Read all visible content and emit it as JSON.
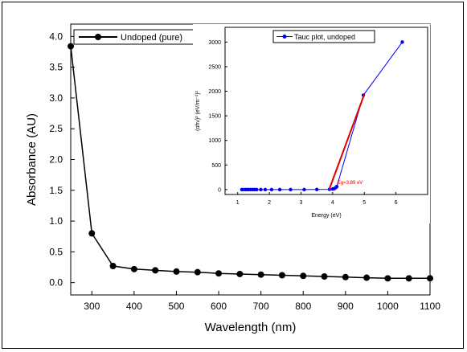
{
  "chart_data": [
    {
      "type": "line",
      "xlabel": "Wavelength (nm)",
      "ylabel": "Absorbance (AU)",
      "xlim": [
        250,
        1100
      ],
      "ylim": [
        -0.2,
        4.2
      ],
      "xticks": [
        300,
        400,
        500,
        600,
        700,
        800,
        900,
        1000,
        1100
      ],
      "yticks": [
        0.0,
        0.5,
        1.0,
        1.5,
        2.0,
        2.5,
        3.0,
        3.5,
        4.0
      ],
      "xtick_labels": [
        "300",
        "400",
        "500",
        "600",
        "700",
        "800",
        "900",
        "1000",
        "1100"
      ],
      "ytick_labels": [
        "0.0",
        "0.5",
        "1.0",
        "1.5",
        "2.0",
        "2.5",
        "3.0",
        "3.5",
        "4.0"
      ],
      "legend_position": "top-left",
      "series": [
        {
          "name": "Undoped (pure)",
          "color": "#000000",
          "marker": "circle",
          "x": [
            250,
            300,
            350,
            400,
            450,
            500,
            550,
            600,
            650,
            700,
            750,
            800,
            850,
            900,
            950,
            1000,
            1050,
            1100
          ],
          "y": [
            3.84,
            0.8,
            0.27,
            0.22,
            0.2,
            0.18,
            0.17,
            0.15,
            0.14,
            0.13,
            0.12,
            0.11,
            0.1,
            0.09,
            0.08,
            0.07,
            0.07,
            0.07
          ]
        }
      ]
    },
    {
      "type": "line",
      "xlabel": "Energy (eV)",
      "ylabel": "(αhν)² (eV/m⁻¹)²",
      "xlim": [
        0.6,
        7.0
      ],
      "ylim": [
        -100,
        3300
      ],
      "xticks": [
        1,
        2,
        3,
        4,
        5,
        6
      ],
      "yticks": [
        0,
        500,
        1000,
        1500,
        2000,
        2500,
        3000
      ],
      "xtick_labels": [
        "1",
        "2",
        "3",
        "4",
        "5",
        "6"
      ],
      "ytick_labels": [
        "0",
        "500",
        "1000",
        "1500",
        "2000",
        "2500",
        "3000"
      ],
      "legend_position": "top-right",
      "annotation": "Eg=3.89 eV",
      "annotation_x": 4.15,
      "annotation_y": 110,
      "series": [
        {
          "name": "Tauc plot, undoped",
          "color": "#0000ff",
          "marker": "circle",
          "x": [
            1.13,
            1.2,
            1.27,
            1.33,
            1.4,
            1.47,
            1.53,
            1.6,
            1.73,
            1.87,
            2.07,
            2.33,
            2.67,
            3.1,
            3.5,
            3.9,
            4.0,
            4.05,
            4.1,
            4.13,
            4.97,
            6.2
          ],
          "y": [
            0,
            0,
            0,
            0,
            0,
            0,
            0,
            0,
            0,
            0,
            0,
            0,
            0,
            0,
            2,
            5,
            12,
            20,
            40,
            60,
            1920,
            3000
          ]
        },
        {
          "name": "",
          "color": "#e00000",
          "marker": "none",
          "x": [
            3.89,
            5.0
          ],
          "y": [
            0,
            1940
          ]
        }
      ]
    }
  ]
}
